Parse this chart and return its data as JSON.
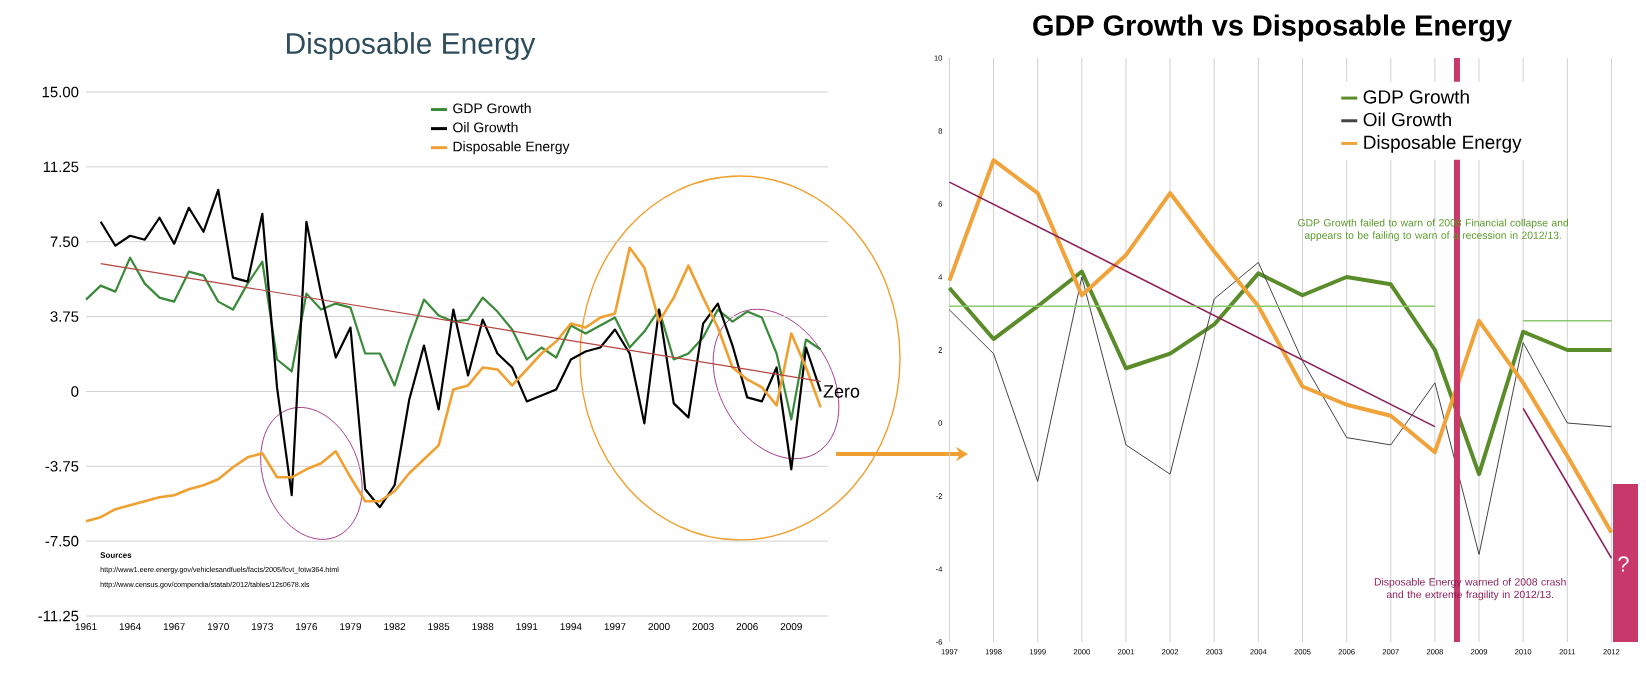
{
  "chart_data": [
    {
      "type": "line",
      "title": "Disposable Energy",
      "x": [
        1961,
        1962,
        1963,
        1964,
        1965,
        1966,
        1967,
        1968,
        1969,
        1970,
        1971,
        1972,
        1973,
        1974,
        1975,
        1976,
        1977,
        1978,
        1979,
        1980,
        1981,
        1982,
        1983,
        1984,
        1985,
        1986,
        1987,
        1988,
        1989,
        1990,
        1991,
        1992,
        1993,
        1994,
        1995,
        1996,
        1997,
        1998,
        1999,
        2000,
        2001,
        2002,
        2003,
        2004,
        2005,
        2006,
        2007,
        2008,
        2009,
        2010,
        2011
      ],
      "xlim": [
        1961,
        2011.5
      ],
      "xticks": [
        1961,
        1964,
        1967,
        1970,
        1973,
        1976,
        1979,
        1982,
        1985,
        1988,
        1991,
        1994,
        1997,
        2000,
        2003,
        2006,
        2009
      ],
      "ylim": [
        -11.25,
        15
      ],
      "yticks": [
        -11.25,
        {
          "value": -7.5,
          "label": "-7.50"
        },
        -3.75,
        0,
        3.75,
        {
          "value": 7.5,
          "label": "7.50"
        },
        11.25,
        {
          "value": 15,
          "label": "15.00"
        }
      ],
      "grid": "y",
      "legend": "top",
      "series": [
        {
          "name": "GDP Growth",
          "color": "#3a8a3a",
          "values": [
            4.6,
            5.3,
            5.0,
            6.7,
            5.4,
            4.7,
            4.5,
            6.0,
            5.8,
            4.5,
            4.1,
            5.4,
            6.5,
            1.6,
            1.0,
            4.9,
            4.1,
            4.4,
            4.2,
            1.9,
            1.9,
            0.3,
            2.6,
            4.6,
            3.8,
            3.5,
            3.6,
            4.7,
            4.0,
            3.1,
            1.6,
            2.2,
            1.7,
            3.3,
            2.9,
            3.3,
            3.7,
            2.2,
            3.0,
            4.1,
            1.6,
            1.9,
            2.7,
            4.1,
            3.5,
            4.0,
            3.7,
            1.9,
            -1.4,
            2.6,
            2.1
          ]
        },
        {
          "name": "Oil Growth",
          "color": "#000000",
          "x": [
            1962,
            1963,
            1964,
            1965,
            1966,
            1967,
            1968,
            1969,
            1970,
            1971,
            1972,
            1973,
            1974,
            1975,
            1976,
            1977,
            1978,
            1979,
            1980,
            1981,
            1982,
            1983,
            1984,
            1985,
            1986,
            1987,
            1988,
            1989,
            1990,
            1991,
            1992,
            1993,
            1994,
            1995,
            1996,
            1997,
            1998,
            1999,
            2000,
            2001,
            2002,
            2003,
            2004,
            2005,
            2006,
            2007,
            2008,
            2009,
            2010,
            2011
          ],
          "values": [
            8.5,
            7.3,
            7.8,
            7.6,
            8.7,
            7.4,
            9.2,
            8.0,
            10.1,
            5.7,
            5.5,
            8.9,
            0.2,
            -5.2,
            8.5,
            4.9,
            1.7,
            3.2,
            -4.9,
            -5.8,
            -4.7,
            -0.4,
            2.3,
            -0.9,
            4.1,
            0.8,
            3.6,
            1.9,
            1.2,
            -0.5,
            -0.2,
            0.1,
            1.6,
            2.0,
            2.2,
            3.1,
            1.9,
            -1.6,
            4.1,
            -0.6,
            -1.3,
            3.4,
            4.4,
            2.3,
            -0.3,
            -0.5,
            1.2,
            -3.9,
            2.2,
            0.0
          ]
        },
        {
          "name": "Disposable  Energy",
          "color": "#f0a030",
          "values": [
            -6.5,
            -6.3,
            -5.9,
            -5.7,
            -5.5,
            -5.3,
            -5.2,
            -4.9,
            -4.7,
            -4.4,
            -3.8,
            -3.3,
            -3.1,
            -4.3,
            -4.3,
            -3.9,
            -3.6,
            -3.0,
            -4.3,
            -5.5,
            -5.5,
            -5.0,
            -4.1,
            -3.4,
            -2.7,
            0.1,
            0.3,
            1.2,
            1.1,
            0.3,
            1.1,
            1.9,
            2.5,
            3.4,
            3.2,
            3.7,
            3.9,
            7.2,
            6.2,
            3.5,
            4.7,
            6.3,
            4.7,
            3.2,
            1.2,
            0.6,
            0.2,
            -0.7,
            2.9,
            1.2,
            -0.8
          ]
        },
        {
          "color": "#b5443e",
          "x": [
            1962,
            2011
          ],
          "values": [
            6.4,
            0.5
          ]
        }
      ],
      "annotations": [
        "Sources",
        "http://www1.eere.energy.gov/vehiclesandfuels/facts/2005/fcvt_fotw364.html",
        "http://www.census.gov/compendia/statab/2012/tables/12s0678.xls",
        {
          "text": "Zero",
          "x": 2011,
          "y": 0
        }
      ]
    },
    {
      "type": "line",
      "title": "GDP Growth vs Disposable Energy",
      "x": [
        1997,
        1998,
        1999,
        2000,
        2001,
        2002,
        2003,
        2004,
        2005,
        2006,
        2007,
        2008,
        2009,
        2010,
        2011,
        2012
      ],
      "xlim": [
        1997,
        2012
      ],
      "xticks": [
        1997,
        1998,
        1999,
        2000,
        2001,
        2002,
        2003,
        2004,
        2005,
        2006,
        2007,
        2008,
        2009,
        2010,
        2011,
        2012
      ],
      "ylim": [
        -6,
        10
      ],
      "yticks": [
        -6,
        -4,
        -2,
        0,
        2,
        4,
        6,
        8,
        10
      ],
      "grid": "x",
      "legend": "top right",
      "series": [
        {
          "name": "GDP Growth",
          "color": "#5b8c2a",
          "values": [
            3.7,
            2.3,
            3.2,
            4.15,
            1.5,
            1.9,
            2.7,
            4.1,
            3.5,
            4.0,
            3.8,
            2.0,
            -1.4,
            2.5,
            2.0,
            2.0
          ]
        },
        {
          "name": "Oil Growth",
          "color": "#444444",
          "values": [
            3.1,
            1.9,
            -1.6,
            4.0,
            -0.6,
            -1.4,
            3.4,
            4.4,
            1.7,
            -0.4,
            -0.6,
            1.1,
            -3.6,
            2.2,
            0.0,
            -0.1
          ]
        },
        {
          "name": "Disposable Energy",
          "color": "#f0a33a",
          "values": [
            3.9,
            7.2,
            6.3,
            3.5,
            4.6,
            6.3,
            4.7,
            3.2,
            1.0,
            0.5,
            0.2,
            -0.8,
            2.8,
            1.1,
            -0.9,
            -3.0
          ]
        },
        {
          "color": "#8b1e5a",
          "x": [
            1997,
            2008
          ],
          "values": [
            6.6,
            -0.1
          ]
        },
        {
          "color": "#8b1e5a",
          "x": [
            2010,
            2012
          ],
          "values": [
            0.4,
            -3.7
          ]
        },
        {
          "color": "#8cc870",
          "x": [
            1997,
            2008
          ],
          "values": [
            3.2,
            3.2
          ]
        },
        {
          "color": "#8cc870",
          "x": [
            2010,
            2012
          ],
          "values": [
            2.8,
            2.8
          ]
        }
      ],
      "ref_lines": [
        {
          "axis": "x",
          "value": 2008.5,
          "color": "#c8386a"
        }
      ],
      "annotations": [
        "GDP Growth failed to warn of 2008 Financial collapse and appears to be failing to warn of a recession in 2012/13.",
        "Disposable Energy warned of 2008 crash and the extreme fragility in 2012/13.",
        "?"
      ]
    }
  ]
}
